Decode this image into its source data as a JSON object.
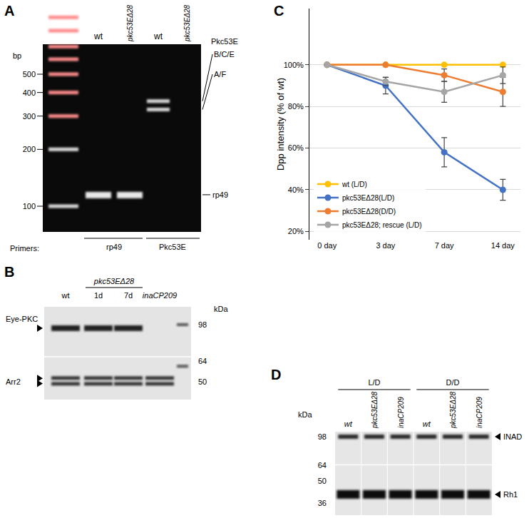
{
  "panel_labels": [
    "A",
    "B",
    "C",
    "D"
  ],
  "panels": [
    {
      "lanes": [
        "wt",
        "pkc53EΔ28",
        "wt",
        "pkc53EΔ28"
      ],
      "ladder_unit": "bp",
      "ladder": [
        500,
        400,
        300,
        200,
        100
      ],
      "band_labels": [
        "Pkc53E",
        "B/C/E",
        "A/F",
        "rp49"
      ],
      "primers_label": "Primers:",
      "primer_groups": [
        "rp49",
        "Pkc53E"
      ]
    },
    {
      "group_label": "pkc53EΔ28",
      "lanes": [
        "wt",
        "1d",
        "7d",
        "inaCP209"
      ],
      "proteins": [
        "Eye-PKC",
        "Arr2"
      ],
      "marker_unit": "kDa",
      "markers": [
        98,
        64,
        50
      ]
    },
    {
      "conditions": [
        "L/D",
        "D/D"
      ],
      "lanes": [
        "wt",
        "pkc53EΔ28",
        "inaCP209"
      ],
      "proteins": [
        "INAD",
        "Rh1"
      ],
      "marker_unit": "kDa",
      "markers": [
        98,
        64,
        50,
        36
      ]
    }
  ],
  "chart_data": {
    "type": "line",
    "y_label": "Dpp intensity (% of wt)",
    "categories": [
      "0 day",
      "3 day",
      "7 day",
      "14 day"
    ],
    "series": [
      {
        "name": "wt (L/D)",
        "color": "#ffc000",
        "values": [
          100,
          100,
          100,
          100
        ]
      },
      {
        "name": "pkc53EΔ28(L/D)",
        "color": "#4472c4",
        "values": [
          100,
          90,
          58,
          40
        ],
        "error": [
          0,
          4,
          7,
          5
        ]
      },
      {
        "name": "pkc53EΔ28(D/D)",
        "color": "#ed7d31",
        "values": [
          100,
          100,
          95,
          87
        ],
        "error": [
          0,
          0,
          3,
          7
        ]
      },
      {
        "name": "pkc53EΔ28; rescue (L/D)",
        "color": "#a5a5a5",
        "values": [
          100,
          92,
          87,
          95
        ],
        "error": [
          0,
          2,
          5,
          4
        ]
      }
    ],
    "ylim": [
      16,
      127
    ],
    "yticks": [
      {
        "value": 20,
        "label": "20%"
      },
      {
        "value": 40,
        "label": "40%"
      },
      {
        "value": 60,
        "label": "60%"
      },
      {
        "value": 80,
        "label": "80%"
      },
      {
        "value": 100,
        "label": "100%"
      }
    ],
    "grid": true,
    "legend": "lower left",
    "marker": "circle"
  }
}
